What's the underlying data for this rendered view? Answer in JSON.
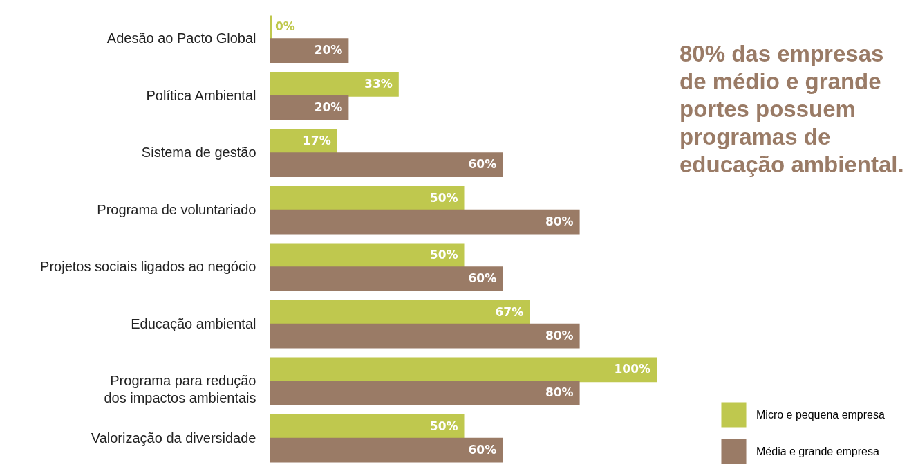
{
  "chart_data": {
    "type": "bar",
    "orientation": "horizontal",
    "categories": [
      "Adesão ao Pacto Global",
      "Política Ambiental",
      "Sistema de gestão",
      "Programa de voluntariado",
      "Projetos sociais ligados ao negócio",
      "Educação ambiental",
      "Programa para redução\ndos impactos ambientais",
      "Valorização da diversidade"
    ],
    "series": [
      {
        "name": "Micro e pequena empresa",
        "color": "#bfc84e",
        "values": [
          0,
          33,
          17,
          50,
          50,
          67,
          100,
          50
        ],
        "value_labels": [
          "0%",
          "33%",
          "17%",
          "50%",
          "50%",
          "67%",
          "100%",
          "50%"
        ]
      },
      {
        "name": "Média e grande empresa",
        "color": "#9a7b66",
        "values": [
          20,
          20,
          60,
          80,
          60,
          80,
          80,
          60
        ],
        "value_labels": [
          "20%",
          "20%",
          "60%",
          "80%",
          "60%",
          "80%",
          "80%",
          "60%"
        ]
      }
    ],
    "legend": "bottom right",
    "annotations": [
      "80% das empresas de médio e grande portes possuem programas de educação ambiental."
    ]
  }
}
